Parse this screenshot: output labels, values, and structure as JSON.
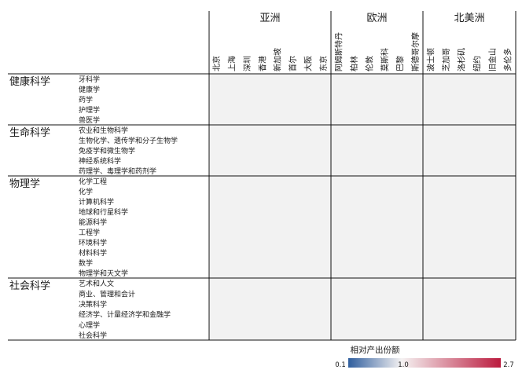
{
  "chart_data": {
    "type": "heatmap",
    "column_groups": [
      {
        "label": "亚洲",
        "columns": [
          "北京",
          "上海",
          "深圳",
          "香港",
          "新加坡",
          "首尔",
          "大阪",
          "东京"
        ]
      },
      {
        "label": "欧洲",
        "columns": [
          "阿姆斯特丹",
          "柏林",
          "伦敦",
          "莫斯科",
          "巴黎",
          "斯德哥尔摩"
        ]
      },
      {
        "label": "北美洲",
        "columns": [
          "波士顿",
          "芝加哥",
          "洛杉矶",
          "纽约",
          "旧金山",
          "多伦多"
        ]
      }
    ],
    "row_groups": [
      {
        "label": "健康科学",
        "rows": [
          "牙科学",
          "健康学",
          "药学",
          "护理学",
          "兽医学"
        ]
      },
      {
        "label": "生命科学",
        "rows": [
          "农业和生物科学",
          "生物化学、遗传学和分子生物学",
          "免疫学和微生物学",
          "神经系统科学",
          "药理学、毒理学和药剂学"
        ]
      },
      {
        "label": "物理学",
        "rows": [
          "化学工程",
          "化学",
          "计算机科学",
          "地球和行星科学",
          "能源科学",
          "工程学",
          "环境科学",
          "材料科学",
          "数学",
          "物理学和天文学"
        ]
      },
      {
        "label": "社会科学",
        "rows": [
          "艺术和人文",
          "商业、管理和会计",
          "决策科学",
          "经济学、计量经济学和金融学",
          "心理学",
          "社会科学"
        ]
      }
    ],
    "values": [],
    "colorbar": {
      "title": "相对产出份额",
      "min": 0.1,
      "mid": 1.0,
      "max": 2.7,
      "min_label": "0.1",
      "mid_label": "1.0",
      "max_label": "2.7",
      "colors": [
        "#2f5e9e",
        "#f5f2f2",
        "#bb1b3e"
      ]
    }
  }
}
